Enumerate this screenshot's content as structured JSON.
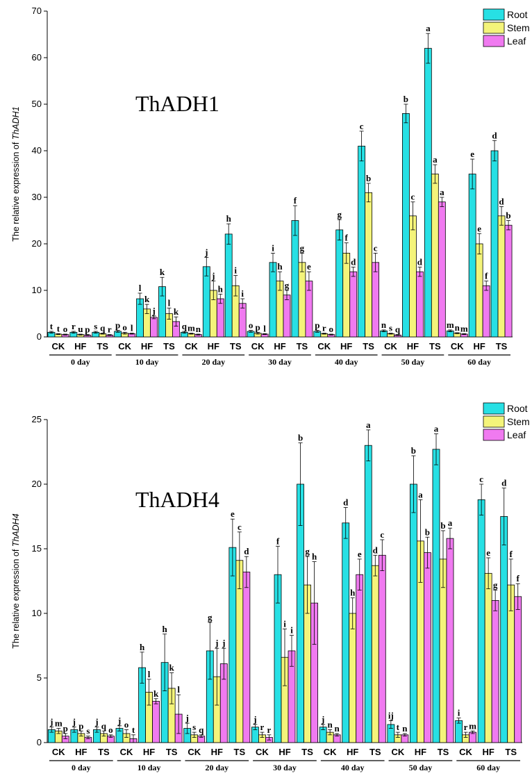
{
  "colors": {
    "Root": "#27e0e4",
    "Stem": "#f4f47a",
    "Leaf": "#f07af0"
  },
  "chart_data": [
    {
      "type": "bar",
      "title": "ThADH1",
      "ylabel_prefix": "The relative expression of ",
      "ylabel_gene": "ThADH1",
      "ylim": [
        0,
        70
      ],
      "yticks": [
        0,
        10,
        20,
        30,
        40,
        50,
        60,
        70
      ],
      "treatments": [
        "CK",
        "HF",
        "TS"
      ],
      "groups": [
        "0 day",
        "10 day",
        "20 day",
        "30 day",
        "40 day",
        "50 day",
        "60 day"
      ],
      "legend": [
        "Root",
        "Stem",
        "Leaf"
      ],
      "legend_position": "top-right",
      "series": [
        {
          "name": "Root",
          "values": [
            1.0,
            1.0,
            1.0,
            1.2,
            8.2,
            10.8,
            1.0,
            15.1,
            22.1,
            1.2,
            16.0,
            25.0,
            1.2,
            23.0,
            41.0,
            1.3,
            48.0,
            62.0,
            1.3,
            35.0,
            40.0
          ],
          "errors": [
            0.2,
            0.2,
            0.2,
            0.2,
            1.2,
            2.0,
            0.2,
            2.0,
            2.2,
            0.2,
            2.0,
            3.2,
            0.2,
            2.2,
            3.2,
            0.2,
            2.0,
            3.2,
            0.2,
            3.2,
            2.2
          ],
          "labels": [
            "t",
            "r",
            "s",
            "p",
            "l",
            "k",
            "q",
            "j",
            "h",
            "o",
            "i",
            "f",
            "p",
            "g",
            "c",
            "n",
            "b",
            "a",
            "m",
            "e",
            "d"
          ]
        },
        {
          "name": "Stem",
          "values": [
            0.6,
            0.5,
            0.7,
            0.8,
            6.0,
            5.0,
            0.7,
            10.0,
            11.0,
            0.8,
            12.0,
            16.0,
            0.7,
            18.0,
            31.0,
            0.7,
            26.0,
            35.0,
            0.8,
            20.0,
            26.0
          ],
          "errors": [
            0.1,
            0.1,
            0.1,
            0.2,
            1.0,
            1.2,
            0.1,
            2.0,
            2.2,
            0.2,
            2.0,
            2.0,
            0.1,
            2.2,
            2.0,
            0.1,
            3.0,
            2.0,
            0.1,
            2.2,
            2.0
          ],
          "labels": [
            "t",
            "u",
            "q",
            "o",
            "k",
            "l",
            "m",
            "j",
            "i",
            "p",
            "h",
            "g",
            "r",
            "f",
            "b",
            "s",
            "c",
            "a",
            "n",
            "e",
            "d"
          ]
        },
        {
          "name": "Leaf",
          "values": [
            0.5,
            0.4,
            0.4,
            0.7,
            4.2,
            3.3,
            0.5,
            8.2,
            7.2,
            0.6,
            9.0,
            12.0,
            0.5,
            14.0,
            16.0,
            0.4,
            14.0,
            29.0,
            0.6,
            11.0,
            24.0
          ],
          "errors": [
            0.1,
            0.1,
            0.1,
            0.1,
            0.3,
            1.0,
            0.1,
            1.0,
            1.0,
            0.1,
            1.0,
            2.0,
            0.1,
            1.0,
            2.0,
            0.1,
            1.0,
            1.0,
            0.1,
            1.0,
            1.0
          ],
          "labels": [
            "o",
            "p",
            "r",
            "l",
            "j",
            "k",
            "n",
            "h",
            "i",
            "l",
            "g",
            "e",
            "o",
            "d",
            "c",
            "q",
            "d",
            "a",
            "m",
            "f",
            "b"
          ]
        }
      ]
    },
    {
      "type": "bar",
      "title": "ThADH4",
      "ylabel_prefix": "The relative expression of ",
      "ylabel_gene": "ThADH4",
      "ylim": [
        0,
        25
      ],
      "yticks": [
        0,
        5,
        10,
        15,
        20,
        25
      ],
      "treatments": [
        "CK",
        "HF",
        "TS"
      ],
      "groups": [
        "0 day",
        "10 day",
        "20 day",
        "30 day",
        "40 day",
        "50 day",
        "60 day"
      ],
      "legend": [
        "Root",
        "Stem",
        "Leaf"
      ],
      "legend_position": "top-right",
      "series": [
        {
          "name": "Root",
          "values": [
            1.0,
            1.0,
            1.0,
            1.1,
            5.8,
            6.2,
            1.1,
            7.1,
            15.1,
            1.2,
            13.0,
            20.0,
            1.2,
            17.0,
            23.0,
            1.4,
            20.0,
            22.7,
            1.7,
            18.8,
            17.5
          ],
          "errors": [
            0.2,
            0.2,
            0.2,
            0.2,
            1.2,
            2.2,
            0.4,
            2.2,
            2.2,
            0.2,
            2.2,
            3.2,
            0.2,
            1.2,
            1.2,
            0.3,
            2.2,
            1.2,
            0.2,
            1.2,
            2.2
          ],
          "labels": [
            "j",
            "j",
            "j",
            "j",
            "h",
            "h",
            "j",
            "g",
            "e",
            "j",
            "f",
            "b",
            "j",
            "d",
            "a",
            "ij",
            "b",
            "a",
            "i",
            "c",
            "d"
          ]
        },
        {
          "name": "Stem",
          "values": [
            0.9,
            0.7,
            0.7,
            0.7,
            3.9,
            4.2,
            0.6,
            5.1,
            14.1,
            0.6,
            6.6,
            12.2,
            0.8,
            10.0,
            13.7,
            0.6,
            15.6,
            14.2,
            0.6,
            13.1,
            12.2
          ],
          "errors": [
            0.2,
            0.2,
            0.2,
            0.3,
            1.0,
            1.2,
            0.2,
            2.2,
            2.2,
            0.2,
            2.2,
            2.2,
            0.2,
            1.2,
            0.8,
            0.2,
            3.2,
            2.2,
            0.2,
            1.2,
            2.0
          ],
          "labels": [
            "m",
            "p",
            "q",
            "o",
            "l",
            "k",
            "s",
            "j",
            "c",
            "r",
            "i",
            "g",
            "n",
            "h",
            "d",
            "t",
            "a",
            "b",
            "r",
            "e",
            "f"
          ]
        },
        {
          "name": "Leaf",
          "values": [
            0.5,
            0.4,
            0.5,
            0.3,
            3.2,
            2.2,
            0.5,
            6.1,
            13.2,
            0.4,
            7.1,
            10.8,
            0.6,
            13.0,
            14.5,
            0.6,
            14.7,
            15.8,
            0.8,
            11.0,
            11.3
          ],
          "errors": [
            0.2,
            0.1,
            0.1,
            0.3,
            0.2,
            1.5,
            0.1,
            1.2,
            1.2,
            0.2,
            1.2,
            3.2,
            0.1,
            1.2,
            1.2,
            0.1,
            1.2,
            0.8,
            0.1,
            0.8,
            1.0
          ],
          "labels": [
            "p",
            "s",
            "o",
            "t",
            "k",
            "l",
            "q",
            "j",
            "d",
            "r",
            "i",
            "h",
            "n",
            "e",
            "c",
            "n",
            "b",
            "a",
            "m",
            "g",
            "f"
          ]
        }
      ]
    }
  ]
}
